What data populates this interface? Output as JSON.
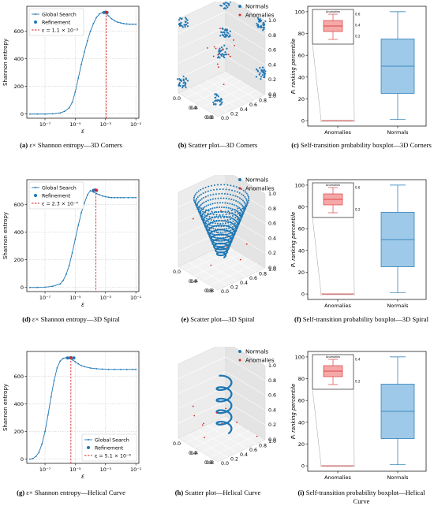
{
  "colors": {
    "blue": "#1f77b4",
    "red": "#d62728",
    "box_blue": "#9ec9e8",
    "box_red": "#f4a9a8",
    "grid": "#b0b0b0"
  },
  "legend_entropy": {
    "global": "Global Search",
    "refine": "Refinement"
  },
  "legend_scatter": {
    "normals": "Normals",
    "anomalies": "Anomalies"
  },
  "rows": [
    {
      "entropy": {
        "ylabel": "Shannon entropy",
        "xlabel": "ε",
        "eps_label": "ε = 1.1 × 10⁻³",
        "legend_pos": "top-left",
        "caption": {
          "tag": "(a)",
          "text": " ε× Shannon entropy—3D Corners"
        }
      },
      "scatter": {
        "caption": {
          "tag": "(b)",
          "text": " Scatter plot—3D Corners"
        }
      },
      "box": {
        "caption": {
          "tag": "(c)",
          "text": " Self-transition probability boxplot—3D Corners"
        }
      }
    },
    {
      "entropy": {
        "ylabel": "Shannon entropy",
        "xlabel": "ε",
        "eps_label": "ε = 2.3 × 10⁻⁴",
        "legend_pos": "top-left",
        "caption": {
          "tag": "(d)",
          "text": " ε× Shannon entropy—3D Spiral"
        }
      },
      "scatter": {
        "caption": {
          "tag": "(e)",
          "text": " Scatter plot—3D Spiral"
        }
      },
      "box": {
        "caption": {
          "tag": "(f)",
          "text": " Self-transition probability boxplot—3D Spiral"
        }
      }
    },
    {
      "entropy": {
        "ylabel": "Shannon entropy",
        "xlabel": "ε",
        "eps_label": "ε = 5.1 × 10⁻⁶",
        "legend_pos": "bottom-right",
        "caption": {
          "tag": "(g)",
          "text": " ε× Shannon entropy—Helical Curve"
        }
      },
      "scatter": {
        "caption": {
          "tag": "(h)",
          "text": " Scatter plot—Helical Curve"
        }
      },
      "box": {
        "caption": {
          "tag": "(i)",
          "text": " Self-transition probability boxplot—Helical Curve"
        }
      }
    }
  ],
  "chart_data": [
    {
      "type": "line",
      "title": "",
      "xlabel": "ε",
      "ylabel": "Shannon entropy",
      "x_scale": "log",
      "x_ticks": [
        "10⁻⁷",
        "10⁻⁵",
        "10⁻³",
        "10⁻¹"
      ],
      "y_ticks": [
        0,
        200,
        400,
        600
      ],
      "xlim_exp": [
        -8.2,
        -0.8
      ],
      "ylim": [
        -30,
        780
      ],
      "series": [
        {
          "name": "Global Search",
          "x_exp": [
            -8,
            -7.5,
            -7,
            -6.5,
            -6,
            -5.7,
            -5.4,
            -5.2,
            -5,
            -4.8,
            -4.6,
            -4.4,
            -4.2,
            -4,
            -3.8,
            -3.6,
            -3.4,
            -3.2,
            -3.0,
            -2.8,
            -2.6,
            -2.4,
            -2.2,
            -2,
            -1.8,
            -1.6,
            -1.4,
            -1.2,
            -1
          ],
          "y": [
            0,
            0,
            0,
            2,
            8,
            20,
            45,
            85,
            160,
            260,
            360,
            450,
            530,
            600,
            655,
            700,
            725,
            735,
            730,
            710,
            690,
            675,
            665,
            660,
            655,
            652,
            650,
            650,
            650
          ]
        },
        {
          "name": "Refinement",
          "x_exp": [
            -3.1,
            -3.0,
            -2.9
          ],
          "y": [
            735,
            737,
            735
          ]
        }
      ],
      "marker_x_exp": -2.96,
      "threshold_label": "ε = 1.1 × 10⁻³"
    },
    {
      "type": "scatter3d",
      "name": "3D Corners",
      "axis_ticks": [
        "0.0",
        "0.2",
        "0.4",
        "0.6",
        "0.8",
        "1.0"
      ],
      "series": [
        "Normals",
        "Anomalies"
      ]
    },
    {
      "type": "boxplot",
      "ylabel": "P_t ranking percentile",
      "categories": [
        "Anomalies",
        "Normals"
      ],
      "y_ticks": [
        0,
        20,
        40,
        60,
        80,
        100
      ],
      "values": {
        "Anomalies": {
          "min": 0,
          "q1": 0,
          "median": 0,
          "q3": 0,
          "max": 0
        },
        "Normals": {
          "min": 1,
          "q1": 25,
          "median": 50,
          "q3": 75,
          "max": 100
        }
      },
      "inset_ticks": [
        "0.2",
        "0.4",
        "0.6"
      ]
    },
    {
      "type": "line",
      "title": "",
      "xlabel": "ε",
      "ylabel": "Shannon entropy",
      "x_scale": "log",
      "x_ticks": [
        "10⁻⁷",
        "10⁻⁵",
        "10⁻³",
        "10⁻¹"
      ],
      "y_ticks": [
        0,
        200,
        400,
        600
      ],
      "xlim_exp": [
        -8.2,
        -0.8
      ],
      "ylim": [
        -30,
        780
      ],
      "series": [
        {
          "name": "Global Search",
          "x_exp": [
            -8,
            -7.5,
            -7,
            -6.5,
            -6,
            -5.8,
            -5.6,
            -5.4,
            -5.2,
            -5,
            -4.8,
            -4.6,
            -4.4,
            -4.2,
            -4,
            -3.8,
            -3.6,
            -3.4,
            -3.2,
            -3,
            -2.8,
            -2.6,
            -2.4,
            -2.2,
            -2,
            -1.8,
            -1.5,
            -1.2,
            -1
          ],
          "y": [
            0,
            0,
            2,
            8,
            25,
            50,
            95,
            160,
            250,
            350,
            450,
            540,
            610,
            670,
            700,
            690,
            680,
            670,
            662,
            657,
            653,
            650,
            650,
            650,
            650,
            650,
            650,
            650,
            650
          ]
        },
        {
          "name": "Refinement",
          "x_exp": [
            -3.8,
            -3.7,
            -3.6
          ],
          "y": [
            702,
            705,
            702
          ]
        }
      ],
      "marker_x_exp": -3.64,
      "threshold_label": "ε = 2.3 × 10⁻⁴"
    },
    {
      "type": "scatter3d",
      "name": "3D Spiral",
      "axis_ticks": [
        "0.0",
        "0.2",
        "0.4",
        "0.6",
        "0.8",
        "1.0"
      ],
      "series": [
        "Normals",
        "Anomalies"
      ]
    },
    {
      "type": "boxplot",
      "ylabel": "P_t ranking percentile",
      "categories": [
        "Anomalies",
        "Normals"
      ],
      "y_ticks": [
        0,
        20,
        40,
        60,
        80,
        100
      ],
      "values": {
        "Anomalies": {
          "min": 0,
          "q1": 0,
          "median": 0,
          "q3": 0,
          "max": 0
        },
        "Normals": {
          "min": 1,
          "q1": 25,
          "median": 50,
          "q3": 75,
          "max": 100
        }
      },
      "inset_ticks": [
        "0.2",
        "0.6"
      ]
    },
    {
      "type": "line",
      "title": "",
      "xlabel": "ε",
      "ylabel": "Shannon entropy",
      "x_scale": "log",
      "x_ticks": [
        "10⁻⁷",
        "10⁻⁵",
        "10⁻³",
        "10⁻¹"
      ],
      "y_ticks": [
        0,
        200,
        400,
        600
      ],
      "xlim_exp": [
        -8.2,
        -0.8
      ],
      "ylim": [
        -30,
        780
      ],
      "series": [
        {
          "name": "Global Search",
          "x_exp": [
            -8,
            -7.8,
            -7.6,
            -7.4,
            -7.2,
            -7,
            -6.8,
            -6.6,
            -6.4,
            -6.2,
            -6,
            -5.8,
            -5.6,
            -5.4,
            -5.2,
            -5,
            -4.8,
            -4.6,
            -4.4,
            -4,
            -3.6,
            -3.2,
            -2.8,
            -2.4,
            -2,
            -1.6,
            -1.2,
            -1
          ],
          "y": [
            0,
            5,
            20,
            50,
            110,
            200,
            320,
            450,
            570,
            660,
            710,
            730,
            735,
            730,
            720,
            705,
            690,
            678,
            670,
            660,
            655,
            652,
            650,
            650,
            650,
            650,
            650,
            650
          ]
        },
        {
          "name": "Refinement",
          "x_exp": [
            -5.5,
            -5.3,
            -5.1
          ],
          "y": [
            733,
            735,
            733
          ]
        }
      ],
      "marker_x_exp": -5.29,
      "threshold_label": "ε = 5.1 × 10⁻⁶"
    },
    {
      "type": "scatter3d",
      "name": "Helical Curve",
      "axis_ticks": [
        "0.0",
        "0.2",
        "0.4",
        "0.6",
        "0.8",
        "1.0"
      ],
      "series": [
        "Normals",
        "Anomalies"
      ]
    },
    {
      "type": "boxplot",
      "ylabel": "P_t ranking percentile",
      "categories": [
        "Anomalies",
        "Normals"
      ],
      "y_ticks": [
        0,
        20,
        40,
        60,
        80,
        100
      ],
      "values": {
        "Anomalies": {
          "min": 0,
          "q1": 0,
          "median": 0,
          "q3": 0,
          "max": 0
        },
        "Normals": {
          "min": 1,
          "q1": 25,
          "median": 50,
          "q3": 75,
          "max": 100
        }
      },
      "inset_ticks": [
        "0.2",
        "0.4"
      ]
    }
  ]
}
